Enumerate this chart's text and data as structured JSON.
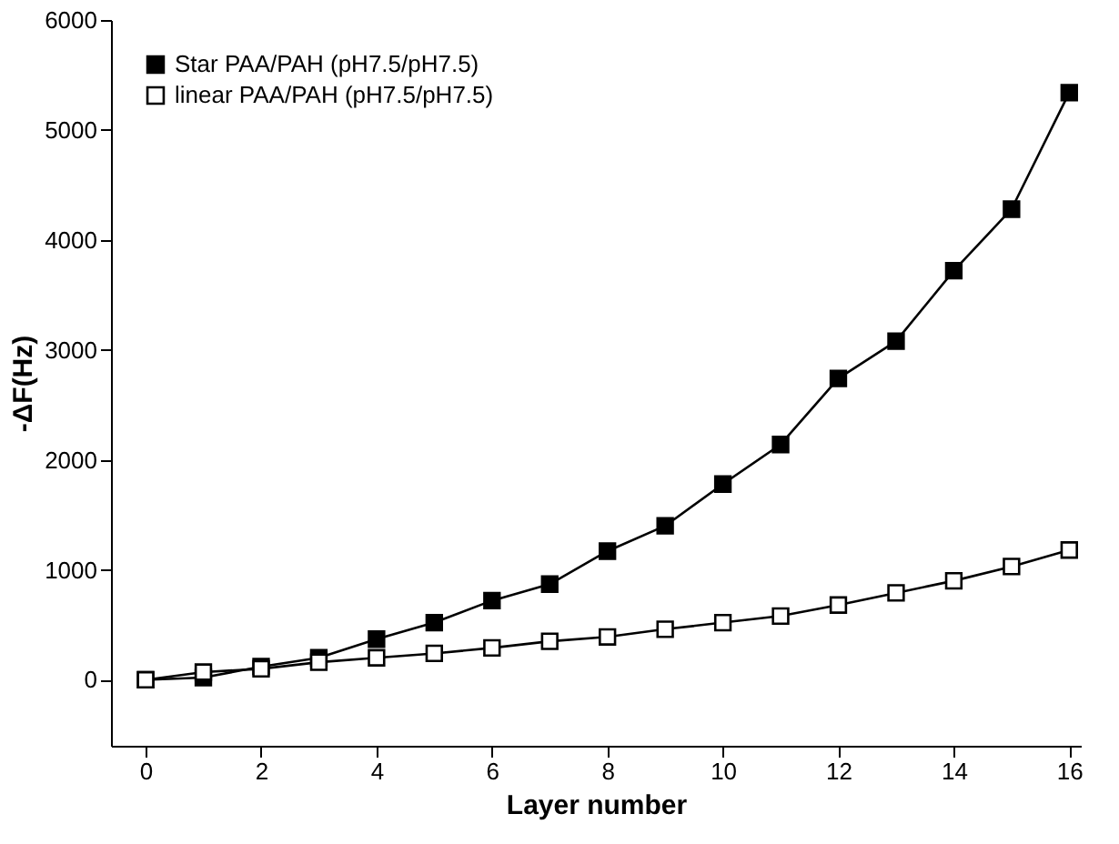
{
  "chart_data": {
    "type": "line",
    "xlabel": "Layer number",
    "ylabel": "-ΔF(Hz)",
    "x": [
      0,
      1,
      2,
      3,
      4,
      5,
      6,
      7,
      8,
      9,
      10,
      11,
      12,
      13,
      14,
      15,
      16
    ],
    "series": [
      {
        "name": "Star PAA/PAH (pH7.5/pH7.5)",
        "color": "#000000",
        "values": [
          0,
          20,
          120,
          200,
          370,
          520,
          720,
          870,
          1170,
          1400,
          1780,
          2140,
          2740,
          3080,
          3720,
          4280,
          5340
        ]
      },
      {
        "name": "linear PAA/PAH (pH7.5/pH7.5)",
        "color": "#000000",
        "values": [
          0,
          70,
          100,
          160,
          200,
          240,
          290,
          350,
          390,
          460,
          520,
          580,
          680,
          790,
          900,
          1030,
          1180
        ]
      }
    ],
    "xlim": [
      -0.6,
      16.2
    ],
    "xticks": [
      0,
      2,
      4,
      6,
      8,
      10,
      12,
      14,
      16
    ],
    "ylim": [
      -600,
      6000
    ],
    "yticks": [
      0,
      1000,
      2000,
      3000,
      4000,
      5000,
      6000
    ],
    "grid": false,
    "legend": "top left",
    "marker": "square",
    "line_style": "solid"
  }
}
